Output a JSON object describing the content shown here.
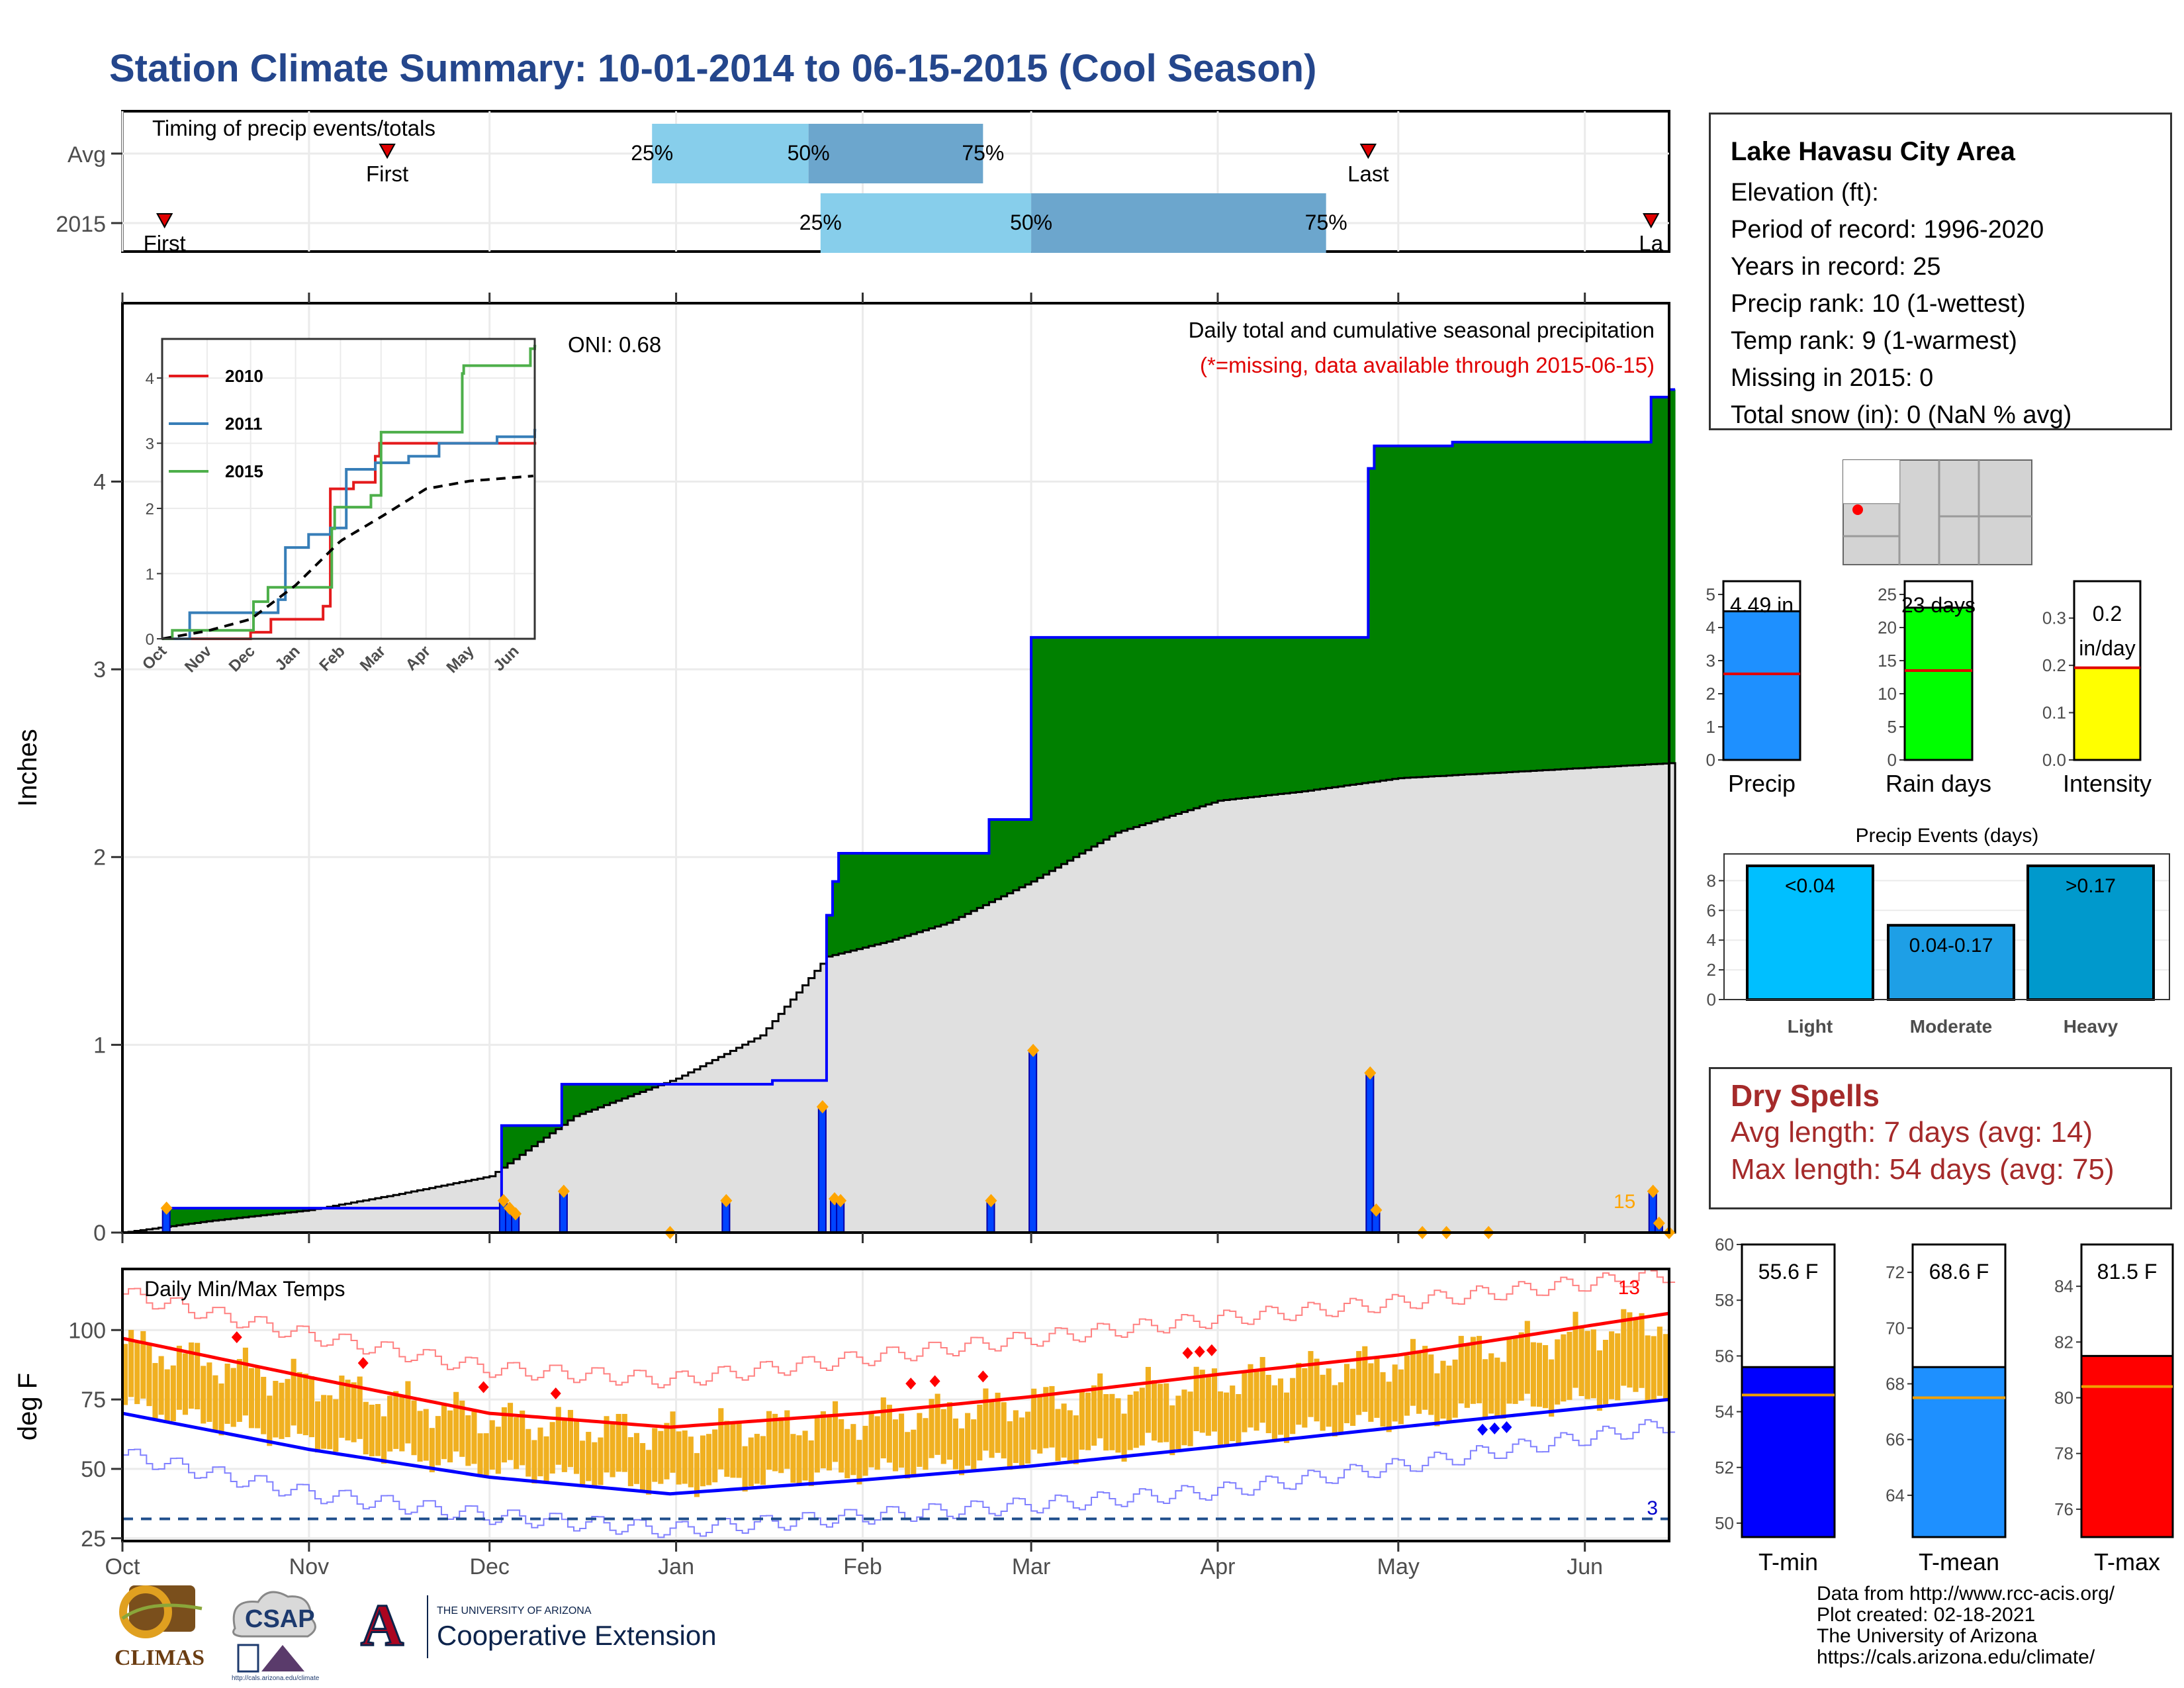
{
  "title": "Station Climate Summary: 10-01-2014 to 06-15-2015 (Cool Season)",
  "timing_panel": {
    "title": "Timing of precip events/totals",
    "row_labels": [
      "Avg",
      "2015"
    ],
    "avg": {
      "first_label": "First",
      "last_label": "Last",
      "first_date": "2014-11-14",
      "last_date": "2015-04-26",
      "p25": "2014-12-28",
      "p50": "2015-01-23",
      "p75": "2015-02-21"
    },
    "y2015": {
      "first_label": "First",
      "last_label": "La",
      "first_date": "2014-10-08",
      "last_date": "2015-06-12",
      "p25": "2015-01-25",
      "p50": "2015-03-01",
      "p75": "2015-04-19"
    },
    "pct_labels": [
      "25%",
      "50%",
      "75%"
    ]
  },
  "precip_panel": {
    "ylabel": "Inches",
    "yticks": [
      "0",
      "1",
      "2",
      "3",
      "4"
    ],
    "oni": "ONI: 0.68",
    "caption1": "Daily total and cumulative seasonal precipitation",
    "caption2": "(*=missing, data available through 2015-06-15)",
    "count_label": "15"
  },
  "inset": {
    "legend": [
      "2010",
      "2011",
      "2015"
    ],
    "colors": [
      "#e41a1c",
      "#377eb8",
      "#4daf4a"
    ],
    "yticks": [
      "0",
      "1",
      "2",
      "3",
      "4"
    ],
    "xticks": [
      "Oct",
      "Nov",
      "Dec",
      "Jan",
      "Feb",
      "Mar",
      "Apr",
      "May",
      "Jun"
    ]
  },
  "temp_panel": {
    "title": "Daily Min/Max Temps",
    "ylabel": "deg F",
    "yticks": [
      "25",
      "50",
      "75",
      "100"
    ],
    "xticks": [
      "Oct",
      "Nov",
      "Dec",
      "Jan",
      "Feb",
      "Mar",
      "Apr",
      "May",
      "Jun"
    ],
    "record_high_count": "13",
    "record_low_count": "3"
  },
  "station": {
    "name": "Lake Havasu City Area",
    "lines": [
      "Elevation (ft):",
      "Period of record: 1996-2020",
      "Years in record: 25",
      "Precip rank: 10 (1-wettest)",
      "Temp rank: 9 (1-warmest)",
      "Missing in 2015: 0",
      "Total snow (in): 0 (NaN % avg)"
    ]
  },
  "summary_bars": [
    {
      "label": "Precip",
      "value_text": "4.49 in",
      "value": 4.49,
      "avg": 2.6,
      "ymax": 5,
      "ticks": [
        "0",
        "1",
        "2",
        "3",
        "4",
        "5"
      ],
      "color": "#1e90ff"
    },
    {
      "label": "Rain days",
      "value_text": "23 days",
      "value": 23,
      "avg": 13.5,
      "ymax": 25,
      "ticks": [
        "0",
        "5",
        "10",
        "15",
        "20",
        "25"
      ],
      "color": "#00ff00"
    },
    {
      "label": "Intensity",
      "value_text1": "0.2",
      "value_text2": "in/day",
      "value": 0.195,
      "avg": 0.195,
      "ymax": 0.35,
      "ticks": [
        "0.0",
        "0.1",
        "0.2",
        "0.3"
      ],
      "color": "#ffff00"
    }
  ],
  "precip_events": {
    "title": "Precip Events (days)",
    "categories": [
      "Light",
      "Moderate",
      "Heavy"
    ],
    "bar_labels": [
      "<0.04",
      "0.04-0.17",
      ">0.17"
    ],
    "values": [
      9,
      5,
      9
    ],
    "ticks": [
      "0",
      "2",
      "4",
      "6",
      "8"
    ],
    "colors": [
      "#00bfff",
      "#1e9fe6",
      "#0099cc"
    ]
  },
  "dry_spells": {
    "heading": "Dry Spells",
    "avg": "Avg length: 7 days (avg: 14)",
    "max": "Max length: 54 days (avg: 75)"
  },
  "temp_bars": [
    {
      "label": "T-min",
      "value_text": "55.6 F",
      "value": 55.6,
      "avg": 54.6,
      "ymin": 49.5,
      "ymax": 60,
      "ticks": [
        "50",
        "52",
        "54",
        "56",
        "58",
        "60"
      ],
      "color": "#0000ff"
    },
    {
      "label": "T-mean",
      "value_text": "68.6 F",
      "value": 68.6,
      "avg": 67.5,
      "ymin": 62.5,
      "ymax": 73,
      "ticks": [
        "64",
        "66",
        "68",
        "70",
        "72"
      ],
      "color": "#1e90ff"
    },
    {
      "label": "T-max",
      "value_text": "81.5 F",
      "value": 81.5,
      "avg": 80.4,
      "ymin": 75,
      "ymax": 85.5,
      "ticks": [
        "76",
        "78",
        "80",
        "82",
        "84"
      ],
      "color": "#ff0000"
    }
  ],
  "credits": [
    "Data from http://www.rcc-acis.org/",
    "Plot created: 02-18-2021",
    "The University of Arizona",
    "https://cals.arizona.edu/climate/"
  ],
  "logos": {
    "climas": "CLIMAS",
    "csap": "CSAP",
    "csap_url": "http://cals.arizona.edu/climate",
    "ua_small": "THE UNIVERSITY OF ARIZONA",
    "ua_big": "Cooperative Extension"
  },
  "chart_data": [
    {
      "type": "area",
      "title": "Daily total and cumulative seasonal precipitation",
      "ylabel": "Inches",
      "ylim": [
        0,
        4.95
      ],
      "x_range": [
        "2014-10-01",
        "2015-06-15"
      ],
      "cumulative_2015": [
        [
          "2014-10-01",
          0
        ],
        [
          "2014-10-08",
          0.13
        ],
        [
          "2014-12-02",
          0.13
        ],
        [
          "2014-12-03",
          0.57
        ],
        [
          "2014-12-13",
          0.79
        ],
        [
          "2015-01-17",
          0.81
        ],
        [
          "2015-01-26",
          1.69
        ],
        [
          "2015-01-27",
          1.87
        ],
        [
          "2015-01-28",
          2.02
        ],
        [
          "2015-02-21",
          2.02
        ],
        [
          "2015-02-22",
          2.2
        ],
        [
          "2015-03-01",
          3.17
        ],
        [
          "2015-04-25",
          3.17
        ],
        [
          "2015-04-26",
          4.07
        ],
        [
          "2015-04-27",
          4.19
        ],
        [
          "2015-05-10",
          4.21
        ],
        [
          "2015-06-11",
          4.21
        ],
        [
          "2015-06-12",
          4.45
        ],
        [
          "2015-06-15",
          4.49
        ]
      ],
      "cumulative_avg": [
        [
          "2014-10-01",
          0
        ],
        [
          "2014-10-15",
          0.06
        ],
        [
          "2014-11-01",
          0.12
        ],
        [
          "2014-11-15",
          0.2
        ],
        [
          "2014-12-01",
          0.3
        ],
        [
          "2014-12-15",
          0.62
        ],
        [
          "2015-01-01",
          0.82
        ],
        [
          "2015-01-15",
          1.05
        ],
        [
          "2015-01-26",
          1.47
        ],
        [
          "2015-02-05",
          1.55
        ],
        [
          "2015-02-15",
          1.65
        ],
        [
          "2015-03-01",
          1.87
        ],
        [
          "2015-03-15",
          2.13
        ],
        [
          "2015-04-01",
          2.3
        ],
        [
          "2015-04-15",
          2.35
        ],
        [
          "2015-05-01",
          2.42
        ],
        [
          "2015-06-15",
          2.5
        ]
      ],
      "daily_2015": [
        [
          "2014-10-08",
          0.13
        ],
        [
          "2014-12-03",
          0.17
        ],
        [
          "2014-12-04",
          0.13
        ],
        [
          "2014-12-05",
          0.1
        ],
        [
          "2014-12-13",
          0.22
        ],
        [
          "2015-01-09",
          0.17
        ],
        [
          "2015-01-25",
          0.67
        ],
        [
          "2015-01-27",
          0.18
        ],
        [
          "2015-01-28",
          0.17
        ],
        [
          "2015-02-22",
          0.17
        ],
        [
          "2015-03-01",
          0.97
        ],
        [
          "2015-04-26",
          0.85
        ],
        [
          "2015-04-27",
          0.12
        ],
        [
          "2015-06-12",
          0.22
        ],
        [
          "2015-06-13",
          0.05
        ]
      ]
    },
    {
      "type": "line",
      "title": "",
      "series": [
        {
          "name": "2010",
          "points": [
            [
              "2014-10-01",
              0
            ],
            [
              "2014-12-01",
              0.1
            ],
            [
              "2014-12-15",
              0.3
            ],
            [
              "2015-01-20",
              0.5
            ],
            [
              "2015-01-25",
              2.3
            ],
            [
              "2015-02-10",
              2.4
            ],
            [
              "2015-02-25",
              2.8
            ],
            [
              "2015-02-28",
              3.0
            ],
            [
              "2015-06-15",
              3.0
            ]
          ]
        },
        {
          "name": "2011",
          "points": [
            [
              "2014-10-01",
              0
            ],
            [
              "2014-10-20",
              0.4
            ],
            [
              "2014-12-20",
              0.6
            ],
            [
              "2014-12-25",
              1.4
            ],
            [
              "2015-01-10",
              1.6
            ],
            [
              "2015-01-25",
              1.7
            ],
            [
              "2015-02-05",
              2.6
            ],
            [
              "2015-02-25",
              2.7
            ],
            [
              "2015-03-20",
              2.8
            ],
            [
              "2015-04-10",
              3.0
            ],
            [
              "2015-05-20",
              3.1
            ],
            [
              "2015-06-15",
              3.2
            ]
          ]
        },
        {
          "name": "2015",
          "points": [
            [
              "2014-10-01",
              0
            ],
            [
              "2014-10-08",
              0.13
            ],
            [
              "2014-12-03",
              0.57
            ],
            [
              "2014-12-13",
              0.79
            ],
            [
              "2015-01-26",
              1.69
            ],
            [
              "2015-01-28",
              2.02
            ],
            [
              "2015-02-22",
              2.2
            ],
            [
              "2015-03-01",
              3.17
            ],
            [
              "2015-04-26",
              4.07
            ],
            [
              "2015-04-27",
              4.19
            ],
            [
              "2015-06-12",
              4.45
            ],
            [
              "2015-06-15",
              4.49
            ]
          ]
        },
        {
          "name": "avg",
          "points": [
            [
              "2014-10-01",
              0
            ],
            [
              "2014-11-01",
              0.12
            ],
            [
              "2014-12-01",
              0.3
            ],
            [
              "2015-01-01",
              0.82
            ],
            [
              "2015-02-01",
              1.5
            ],
            [
              "2015-03-01",
              1.87
            ],
            [
              "2015-04-01",
              2.3
            ],
            [
              "2015-05-01",
              2.42
            ],
            [
              "2015-06-15",
              2.5
            ]
          ]
        }
      ],
      "ylim": [
        0,
        4.6
      ]
    },
    {
      "type": "line",
      "title": "Daily Min/Max Temps",
      "ylabel": "deg F",
      "ylim": [
        24,
        122
      ],
      "normal_max": [
        [
          "2014-10-01",
          97
        ],
        [
          "2014-11-01",
          83
        ],
        [
          "2014-12-01",
          70
        ],
        [
          "2014-12-31",
          65
        ],
        [
          "2015-02-01",
          70
        ],
        [
          "2015-03-01",
          76
        ],
        [
          "2015-04-01",
          84
        ],
        [
          "2015-05-01",
          91
        ],
        [
          "2015-06-15",
          106
        ]
      ],
      "normal_min": [
        [
          "2014-10-01",
          70
        ],
        [
          "2014-11-01",
          57
        ],
        [
          "2014-12-01",
          47
        ],
        [
          "2014-12-31",
          41
        ],
        [
          "2015-02-01",
          46
        ],
        [
          "2015-03-01",
          51
        ],
        [
          "2015-04-01",
          58
        ],
        [
          "2015-05-01",
          65
        ],
        [
          "2015-06-15",
          75
        ]
      ],
      "record_max": [
        [
          "2014-10-01",
          113
        ],
        [
          "2014-11-01",
          98
        ],
        [
          "2014-12-01",
          86
        ],
        [
          "2014-12-31",
          82
        ],
        [
          "2015-02-01",
          90
        ],
        [
          "2015-03-01",
          97
        ],
        [
          "2015-04-01",
          104
        ],
        [
          "2015-05-01",
          110
        ],
        [
          "2015-06-15",
          120
        ]
      ],
      "record_min": [
        [
          "2014-10-01",
          55
        ],
        [
          "2014-11-01",
          41
        ],
        [
          "2014-12-01",
          33
        ],
        [
          "2014-12-31",
          28
        ],
        [
          "2015-02-01",
          33
        ],
        [
          "2015-03-01",
          37
        ],
        [
          "2015-04-01",
          42
        ],
        [
          "2015-05-01",
          51
        ],
        [
          "2015-06-15",
          66
        ]
      ],
      "freeze_line": 32
    },
    {
      "type": "bar",
      "title": "Precip Events (days)",
      "categories": [
        "Light",
        "Moderate",
        "Heavy"
      ],
      "values": [
        9,
        5,
        9
      ]
    }
  ]
}
